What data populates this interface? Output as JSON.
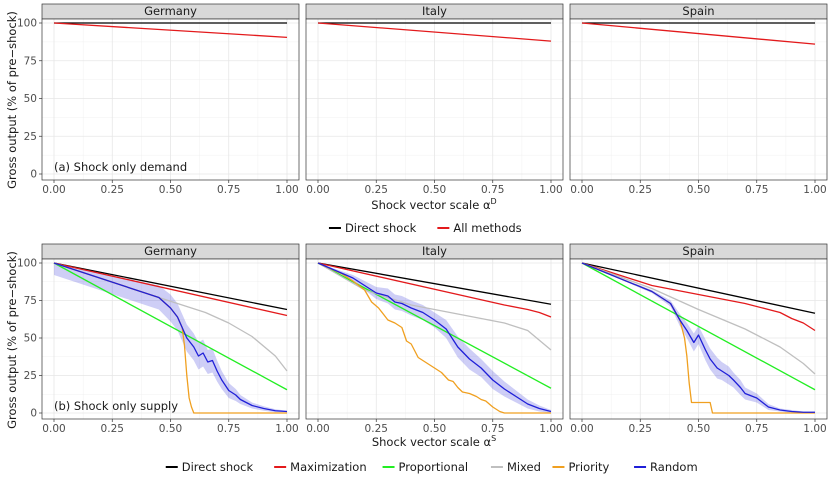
{
  "y_title": "Gross output (% of pre−shock)",
  "chart_data": [
    {
      "type": "line",
      "panel_label": "(a) Shock only demand",
      "xlabel": "Shock vector scale α",
      "xlabel_sup": "D",
      "ylabel": "Gross output (% of pre−shock)",
      "xlim": [
        0,
        1
      ],
      "ylim": [
        0,
        100
      ],
      "x_ticks": [
        "0.00",
        "0.25",
        "0.50",
        "0.75",
        "1.00"
      ],
      "y_ticks": [
        "0",
        "25",
        "50",
        "75",
        "100"
      ],
      "grid": true,
      "legend": {
        "position": "bottom",
        "entries": [
          {
            "name": "Direct shock",
            "color": "#000000"
          },
          {
            "name": "All methods",
            "color": "#e31a1c"
          }
        ]
      },
      "facets": [
        {
          "title": "Germany",
          "series": [
            {
              "name": "Direct shock",
              "color": "#000000",
              "x": [
                0,
                1
              ],
              "y": [
                100,
                100
              ]
            },
            {
              "name": "All methods",
              "color": "#e31a1c",
              "x": [
                0,
                1
              ],
              "y": [
                100,
                90.5
              ]
            }
          ]
        },
        {
          "title": "Italy",
          "series": [
            {
              "name": "Direct shock",
              "color": "#000000",
              "x": [
                0,
                1
              ],
              "y": [
                100,
                100
              ]
            },
            {
              "name": "All methods",
              "color": "#e31a1c",
              "x": [
                0,
                1
              ],
              "y": [
                100,
                88
              ]
            }
          ]
        },
        {
          "title": "Spain",
          "series": [
            {
              "name": "Direct shock",
              "color": "#000000",
              "x": [
                0,
                1
              ],
              "y": [
                100,
                100
              ]
            },
            {
              "name": "All methods",
              "color": "#e31a1c",
              "x": [
                0,
                1
              ],
              "y": [
                100,
                86
              ]
            }
          ]
        }
      ]
    },
    {
      "type": "line",
      "panel_label": "(b) Shock only supply",
      "xlabel": "Shock vector scale α",
      "xlabel_sup": "S",
      "ylabel": "Gross output (% of pre−shock)",
      "xlim": [
        0,
        1
      ],
      "ylim": [
        0,
        100
      ],
      "x_ticks": [
        "0.00",
        "0.25",
        "0.50",
        "0.75",
        "1.00"
      ],
      "y_ticks": [
        "0",
        "25",
        "50",
        "75",
        "100"
      ],
      "grid": true,
      "legend": {
        "position": "bottom",
        "entries": [
          {
            "name": "Direct shock",
            "color": "#000000"
          },
          {
            "name": "Maximization",
            "color": "#e31a1c"
          },
          {
            "name": "Proportional",
            "color": "#22ee22"
          },
          {
            "name": "Mixed",
            "color": "#bfbfbf"
          },
          {
            "name": "Priority",
            "color": "#f0a020"
          },
          {
            "name": "Random",
            "color": "#1f1fd8"
          }
        ]
      },
      "facets": [
        {
          "title": "Germany",
          "series": [
            {
              "name": "Direct shock",
              "color": "#000000",
              "x": [
                0,
                1
              ],
              "y": [
                100,
                69
              ]
            },
            {
              "name": "Maximization",
              "color": "#e31a1c",
              "x": [
                0,
                1
              ],
              "y": [
                100,
                65
              ]
            },
            {
              "name": "Proportional",
              "color": "#22ee22",
              "x": [
                0,
                1
              ],
              "y": [
                100,
                15.5
              ]
            },
            {
              "name": "Mixed",
              "color": "#bfbfbf",
              "x": [
                0,
                0.45,
                0.55,
                0.65,
                0.75,
                0.85,
                0.95,
                1
              ],
              "y": [
                100,
                77,
                72,
                67,
                60,
                51,
                38,
                28
              ]
            },
            {
              "name": "Priority",
              "color": "#f0a020",
              "x": [
                0,
                0.45,
                0.5,
                0.53,
                0.55,
                0.56,
                0.57,
                0.58,
                0.59,
                0.6,
                1
              ],
              "y": [
                100,
                77,
                70,
                64,
                57,
                45,
                25,
                10,
                4,
                0,
                0
              ]
            },
            {
              "name": "Random",
              "color": "#1f1fd8",
              "x": [
                0,
                0.45,
                0.5,
                0.53,
                0.55,
                0.57,
                0.6,
                0.62,
                0.64,
                0.66,
                0.68,
                0.7,
                0.72,
                0.75,
                0.78,
                0.8,
                0.85,
                0.9,
                0.95,
                1
              ],
              "y": [
                100,
                77,
                70,
                64,
                57,
                50,
                44,
                38,
                40,
                34,
                35,
                28,
                22,
                15,
                12,
                9,
                5,
                3,
                1.5,
                1
              ],
              "band": [
                8,
                8,
                9,
                9,
                9,
                9,
                9,
                9,
                9,
                8,
                8,
                7,
                6,
                5,
                4,
                3,
                2,
                1.5,
                1,
                0.5
              ]
            }
          ]
        },
        {
          "title": "Italy",
          "series": [
            {
              "name": "Direct shock",
              "color": "#000000",
              "x": [
                0,
                1
              ],
              "y": [
                100,
                72.5
              ]
            },
            {
              "name": "Maximization",
              "color": "#e31a1c",
              "x": [
                0,
                0.8,
                0.9,
                0.95,
                1
              ],
              "y": [
                100,
                72,
                69,
                67,
                64
              ]
            },
            {
              "name": "Proportional",
              "color": "#22ee22",
              "x": [
                0,
                1
              ],
              "y": [
                100,
                16.5
              ]
            },
            {
              "name": "Mixed",
              "color": "#bfbfbf",
              "x": [
                0,
                0.2,
                0.4,
                0.6,
                0.8,
                0.9,
                1
              ],
              "y": [
                100,
                82,
                72,
                66,
                60,
                55,
                42
              ]
            },
            {
              "name": "Priority",
              "color": "#f0a020",
              "x": [
                0,
                0.1,
                0.15,
                0.2,
                0.23,
                0.26,
                0.3,
                0.33,
                0.36,
                0.38,
                0.4,
                0.43,
                0.46,
                0.5,
                0.53,
                0.56,
                0.58,
                0.6,
                0.62,
                0.65,
                0.68,
                0.7,
                0.72,
                0.75,
                0.78,
                0.8,
                0.82,
                0.85,
                1
              ],
              "y": [
                100,
                93,
                88,
                82,
                74,
                70,
                62,
                60,
                57,
                48,
                46,
                37,
                34,
                30,
                27,
                22,
                21,
                17,
                14,
                13,
                11,
                9,
                8,
                4,
                1,
                0,
                0,
                0,
                0
              ]
            },
            {
              "name": "Random",
              "color": "#1f1fd8",
              "x": [
                0,
                0.15,
                0.2,
                0.25,
                0.3,
                0.33,
                0.36,
                0.4,
                0.45,
                0.5,
                0.55,
                0.6,
                0.65,
                0.7,
                0.75,
                0.8,
                0.85,
                0.9,
                0.95,
                1
              ],
              "y": [
                100,
                90,
                85,
                80,
                78,
                74,
                73,
                70,
                67,
                62,
                56,
                44,
                36,
                30,
                22,
                16,
                11,
                6,
                3,
                1
              ],
              "band": [
                0,
                2,
                3,
                4,
                5,
                5,
                5,
                5,
                5,
                5,
                6,
                7,
                7,
                6,
                6,
                5,
                4,
                3,
                2,
                1
              ]
            }
          ]
        },
        {
          "title": "Spain",
          "series": [
            {
              "name": "Direct shock",
              "color": "#000000",
              "x": [
                0,
                1
              ],
              "y": [
                100,
                66.5
              ]
            },
            {
              "name": "Maximization",
              "color": "#e31a1c",
              "x": [
                0,
                0.3,
                0.5,
                0.7,
                0.85,
                0.9,
                0.95,
                1
              ],
              "y": [
                100,
                85,
                79,
                73,
                67,
                63,
                60,
                55
              ]
            },
            {
              "name": "Proportional",
              "color": "#22ee22",
              "x": [
                0,
                1
              ],
              "y": [
                100,
                15.5
              ]
            },
            {
              "name": "Mixed",
              "color": "#bfbfbf",
              "x": [
                0,
                0.3,
                0.5,
                0.7,
                0.85,
                0.95,
                1
              ],
              "y": [
                100,
                83,
                69,
                56,
                44,
                33,
                26
              ]
            },
            {
              "name": "Priority",
              "color": "#f0a020",
              "x": [
                0,
                0.3,
                0.38,
                0.42,
                0.44,
                0.45,
                0.46,
                0.47,
                0.48,
                0.55,
                0.56,
                0.57,
                1
              ],
              "y": [
                100,
                81,
                73,
                62,
                50,
                38,
                20,
                7,
                7,
                7,
                0,
                0,
                0
              ]
            },
            {
              "name": "Random",
              "color": "#1f1fd8",
              "x": [
                0,
                0.3,
                0.38,
                0.42,
                0.45,
                0.48,
                0.5,
                0.53,
                0.55,
                0.58,
                0.6,
                0.63,
                0.65,
                0.68,
                0.7,
                0.75,
                0.8,
                0.85,
                0.9,
                0.95,
                1
              ],
              "y": [
                100,
                81,
                73,
                62,
                55,
                47,
                52,
                42,
                36,
                30,
                28,
                25,
                22,
                17,
                13,
                10,
                4,
                2,
                1,
                0.5,
                0.5
              ],
              "band": [
                0,
                1,
                2,
                4,
                5,
                6,
                6,
                7,
                7,
                7,
                6,
                6,
                5,
                5,
                4,
                3,
                2,
                1,
                1,
                0.5,
                0.5
              ]
            }
          ]
        }
      ]
    }
  ]
}
